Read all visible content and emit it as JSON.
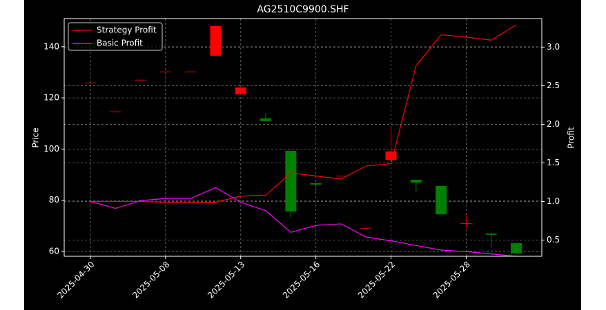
{
  "chart_data": {
    "type": "candlestick",
    "title": "AG2510C9900.SHF",
    "ylabel": "Price",
    "y2label": "Profit",
    "categories": [
      "2025-04-30",
      null,
      null,
      "2025-05-08",
      null,
      null,
      "2025-05-13",
      null,
      null,
      "2025-05-16",
      null,
      null,
      "2025-05-22",
      null,
      null,
      "2025-05-28",
      null,
      null
    ],
    "open": [
      126,
      114.7,
      127.1,
      130.3,
      130.3,
      136.5,
      121.4,
      112.0,
      99.3,
      86.7,
      89.6,
      69.2,
      95.8,
      88.0,
      85.6,
      71.0,
      67.0,
      63.2
    ],
    "high": [
      126,
      114.7,
      127.1,
      130.3,
      130.3,
      148.1,
      124.1,
      114.1,
      99.3,
      86.7,
      89.6,
      69.2,
      108.2,
      88.0,
      85.6,
      74.5,
      67.0,
      63.2
    ],
    "low": [
      126,
      114.7,
      127.1,
      130.3,
      130.3,
      136.5,
      121.4,
      110.9,
      73.2,
      83.4,
      89.6,
      69.2,
      95.8,
      83.2,
      74.5,
      69.2,
      61.3,
      59.2
    ],
    "close": [
      126,
      114.7,
      127.1,
      130.3,
      130.3,
      148.1,
      124.1,
      110.9,
      75.6,
      86.1,
      89.6,
      69.2,
      99.1,
      86.9,
      74.5,
      71.0,
      66.5,
      59.2
    ],
    "up_color": "#ff0000",
    "down_color": "#008000",
    "series": [
      {
        "name": "Strategy Profit",
        "color": "#ff0000",
        "axis": "y2",
        "values": [
          1.0,
          1.0,
          1.0,
          0.99,
          0.99,
          0.99,
          1.07,
          1.08,
          1.37,
          1.33,
          1.29,
          1.46,
          1.49,
          2.76,
          3.16,
          3.13,
          3.09,
          3.29
        ]
      },
      {
        "name": "Basic Profit",
        "color": "#ff00ff",
        "axis": "y2",
        "values": [
          1.0,
          0.91,
          1.01,
          1.04,
          1.04,
          1.18,
          0.99,
          0.88,
          0.6,
          0.69,
          0.71,
          0.54,
          0.49,
          0.43,
          0.37,
          0.35,
          0.32,
          0.29
        ]
      }
    ],
    "ylim": [
      58.1,
      151
    ],
    "yticks": [
      60,
      80,
      100,
      120,
      140
    ],
    "y2lim": [
      0.29,
      3.37
    ],
    "y2ticks": [
      0.5,
      {
        "value": 1.0,
        "label": "1.0"
      },
      1.5,
      {
        "value": 2.0,
        "label": "2.0"
      },
      2.5,
      {
        "value": 3.0,
        "label": "3.0"
      }
    ],
    "grid": true,
    "legend": "upper left"
  }
}
